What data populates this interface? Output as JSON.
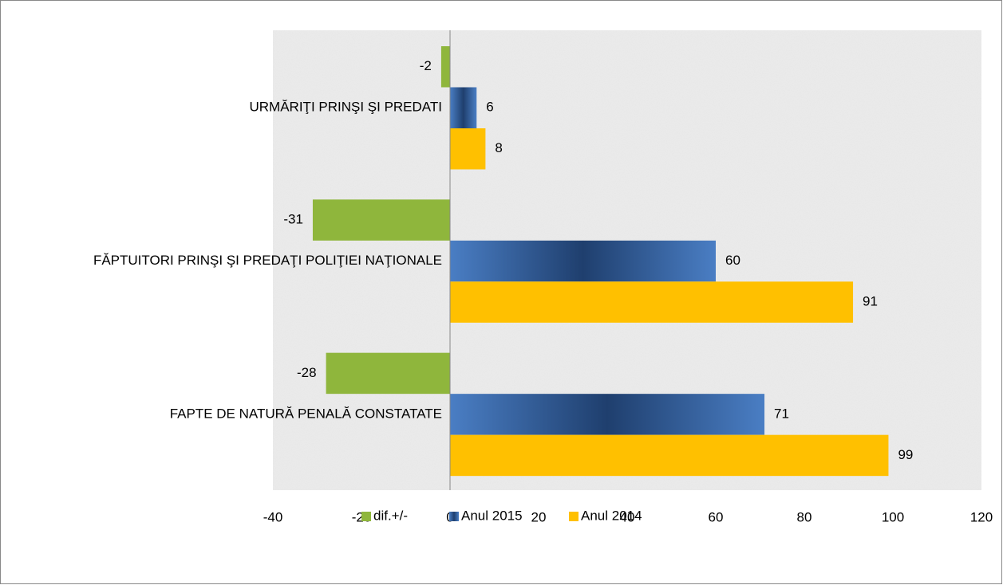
{
  "chart_data": {
    "type": "bar",
    "orientation": "horizontal",
    "categories": [
      "URMĂRIŢI PRINŞI ŞI PREDATI",
      "FĂPTUITORI PRINŞI ŞI PREDAŢI POLIŢIEI NAŢIONALE",
      "FAPTE DE NATURĂ PENALĂ CONSTATATE"
    ],
    "series": [
      {
        "name": "dif.+/-",
        "color": "#8fb63c",
        "values": [
          -2,
          -31,
          -28
        ]
      },
      {
        "name": "Anul 2015",
        "color": "#4a7ec4",
        "values": [
          6,
          60,
          71
        ]
      },
      {
        "name": "Anul 2014",
        "color": "#ffc000",
        "values": [
          8,
          91,
          99
        ]
      }
    ],
    "xlim": [
      -40,
      120
    ],
    "xticks": [
      -40,
      -20,
      0,
      20,
      40,
      60,
      80,
      100,
      120
    ],
    "grid": false,
    "legend": "bottom"
  }
}
